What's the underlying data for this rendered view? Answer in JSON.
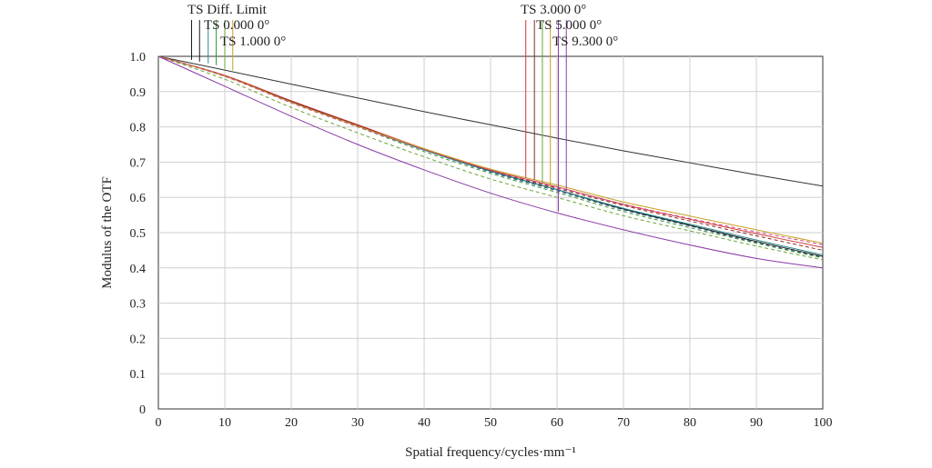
{
  "chart_data": {
    "type": "line",
    "title": "",
    "xlabel": "Spatial frequency/cycles·mm⁻¹",
    "ylabel": "Modulus of the OTF",
    "xlim": [
      0,
      100
    ],
    "ylim": [
      0,
      1.0
    ],
    "xticks": [
      "0",
      "10",
      "20",
      "30",
      "40",
      "50",
      "60",
      "70",
      "80",
      "90",
      "100"
    ],
    "yticks": [
      "0",
      "0.1",
      "0.2",
      "0.3",
      "0.4",
      "0.5",
      "0.6",
      "0.7",
      "0.8",
      "0.9",
      "1.0"
    ],
    "grid": true,
    "legend": "top, leader-line labels",
    "x": [
      0,
      10,
      20,
      30,
      40,
      50,
      60,
      70,
      80,
      90,
      100
    ],
    "series": [
      {
        "name": "TS Diff. Limit",
        "color": "#333333",
        "dash": "none",
        "values": [
          1.0,
          0.961,
          0.921,
          0.882,
          0.843,
          0.806,
          0.768,
          0.732,
          0.698,
          0.664,
          0.632
        ]
      },
      {
        "name": "TS 0.000 0°",
        "color": "#1a1a1a",
        "dash": "none",
        "values": [
          1.0,
          0.945,
          0.872,
          0.805,
          0.735,
          0.675,
          0.622,
          0.567,
          0.521,
          0.475,
          0.433
        ]
      },
      {
        "name": "TS 0.000 0°",
        "color": "#1f3f6f",
        "dash": "4,3",
        "values": [
          1.0,
          0.945,
          0.872,
          0.805,
          0.735,
          0.672,
          0.619,
          0.565,
          0.519,
          0.472,
          0.43
        ]
      },
      {
        "name": "TS 1.000 0°",
        "color": "#2b8a8a",
        "dash": "none",
        "values": [
          1.0,
          0.944,
          0.87,
          0.802,
          0.734,
          0.674,
          0.622,
          0.569,
          0.524,
          0.479,
          0.437
        ]
      },
      {
        "name": "TS 1.000 0°",
        "color": "#3a9a3a",
        "dash": "4,3",
        "values": [
          1.0,
          0.944,
          0.87,
          0.8,
          0.73,
          0.668,
          0.614,
          0.56,
          0.514,
          0.47,
          0.428
        ]
      },
      {
        "name": "TS 3.000 0°",
        "color": "#d23a3a",
        "dash": "none",
        "values": [
          1.0,
          0.946,
          0.874,
          0.806,
          0.738,
          0.678,
          0.63,
          0.58,
          0.538,
          0.497,
          0.458
        ]
      },
      {
        "name": "TS 3.000 0°",
        "color": "#8a2a2a",
        "dash": "4,3",
        "values": [
          1.0,
          0.945,
          0.872,
          0.804,
          0.736,
          0.676,
          0.626,
          0.577,
          0.533,
          0.491,
          0.45
        ]
      },
      {
        "name": "TS 5.000 0°",
        "color": "#c8a020",
        "dash": "none",
        "values": [
          1.0,
          0.944,
          0.87,
          0.802,
          0.738,
          0.68,
          0.635,
          0.587,
          0.547,
          0.508,
          0.47
        ]
      },
      {
        "name": "TS 5.000 0°",
        "color": "#6aa63a",
        "dash": "4,3",
        "values": [
          1.0,
          0.935,
          0.855,
          0.783,
          0.715,
          0.652,
          0.6,
          0.548,
          0.505,
          0.462,
          0.423
        ]
      },
      {
        "name": "TS 9.300 0°",
        "color": "#d04a8a",
        "dash": "4,3",
        "values": [
          1.0,
          0.943,
          0.868,
          0.8,
          0.735,
          0.677,
          0.629,
          0.581,
          0.54,
          0.502,
          0.466
        ]
      },
      {
        "name": "TS 9.300 0°",
        "color": "#8a3aa8",
        "dash": "none",
        "values": [
          1.0,
          0.915,
          0.83,
          0.75,
          0.678,
          0.612,
          0.556,
          0.508,
          0.465,
          0.427,
          0.4
        ]
      }
    ],
    "legend_labels": [
      {
        "text": "TS Diff. Limit",
        "color": "#1a1a1a"
      },
      {
        "text": "TS 0.000 0°",
        "color": "#1a1a1a"
      },
      {
        "text": "TS 1.000 0°",
        "color": "#2b8a8a"
      },
      {
        "text": "TS 3.000 0°",
        "color": "#d23a3a"
      },
      {
        "text": "TS 5.000 0°",
        "color": "#c8a020"
      },
      {
        "text": "TS 9.300 0°",
        "color": "#8a3aa8"
      }
    ]
  }
}
